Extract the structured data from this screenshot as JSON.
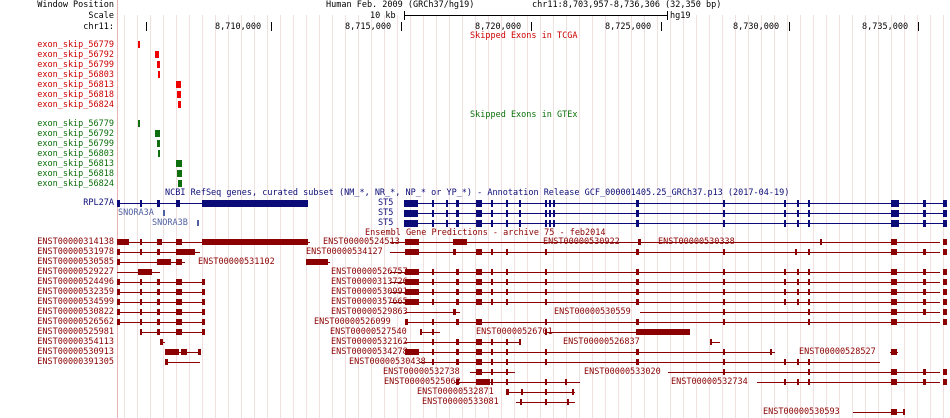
{
  "header": {
    "window_position_label": "Window Position",
    "scale_label": "Scale",
    "chrom_label": "chr11:",
    "assembly": "Human Feb. 2009 (GRCh37/hg19)",
    "position": "chr11:8,703,957-8,736,306 (32,350 bp)",
    "scale_value": "10 kb",
    "scale_db": "hg19",
    "ticks": [
      "8,710,000",
      "8,715,000",
      "8,720,000",
      "8,725,000",
      "8,730,000",
      "8,735,000"
    ]
  },
  "tracks": {
    "tcga": {
      "title": "Skipped Exons in TCGA",
      "items": [
        "exon_skip_56779",
        "exon_skip_56792",
        "exon_skip_56799",
        "exon_skip_56803",
        "exon_skip_56813",
        "exon_skip_56818",
        "exon_skip_56824"
      ]
    },
    "gtex": {
      "title": "Skipped Exons in GTEx",
      "items": [
        "exon_skip_56779",
        "exon_skip_56792",
        "exon_skip_56799",
        "exon_skip_56803",
        "exon_skip_56813",
        "exon_skip_56818",
        "exon_skip_56824"
      ]
    },
    "refseq": {
      "title": "NCBI RefSeq genes, curated subset (NM_*, NR_*, NP_* or YP_*) - Annotation Release GCF_000001405.25_GRCh37.p13 (2017-04-19)",
      "gene_left": "RPL27A",
      "sno1": "SNORA3A",
      "sno2": "SNORA3B",
      "st5": [
        "ST5",
        "ST5",
        "ST5"
      ]
    },
    "ensembl": {
      "title": "Ensembl Gene Predictions - archive 75 - feb2014",
      "left_labels": [
        "ENST00000314138",
        "ENST00000531978",
        "ENST00000530585",
        "ENST00000529227",
        "ENST00000524496",
        "ENST00000532359",
        "ENST00000534599",
        "ENST00000530822",
        "ENST00000526562",
        "ENST00000525981",
        "ENST00000354113",
        "ENST00000530913",
        "ENST00000391305"
      ],
      "inline_labels": {
        "r0a": "ENST00000524513",
        "r0b": "ENST00000530922",
        "r0c": "ENST00000530338",
        "r1": "ENST00000534127",
        "r2": "ENST00000531102",
        "r3": "ENST00000526757",
        "r4": "ENST00000313726",
        "r5": "ENST00000530991",
        "r6": "ENST00000357665",
        "r7a": "ENST00000529863",
        "r7b": "ENST00000530559",
        "r8": "ENST00000526099",
        "r9a": "ENST00000527540",
        "r9b": "ENST00000526701",
        "r10a": "ENST00000532162",
        "r10b": "ENST00000526837",
        "r11a": "ENST00000534278",
        "r11b": "ENST00000528527",
        "r12": "ENST00000530438",
        "r13a": "ENST00000532738",
        "r13b": "ENST00000533020",
        "r14a": "ENST00000525062",
        "r14b": "ENST00000532734",
        "r15": "ENST00000532871",
        "r16": "ENST00000533081",
        "r17": "ENST00000530593"
      }
    }
  },
  "colors": {
    "tcga": "#ee0000",
    "gtex": "#0f6f0f",
    "refseq": "#0c0c78",
    "ensembl": "#8b0000",
    "gutter_line": "#e8b4b4"
  }
}
